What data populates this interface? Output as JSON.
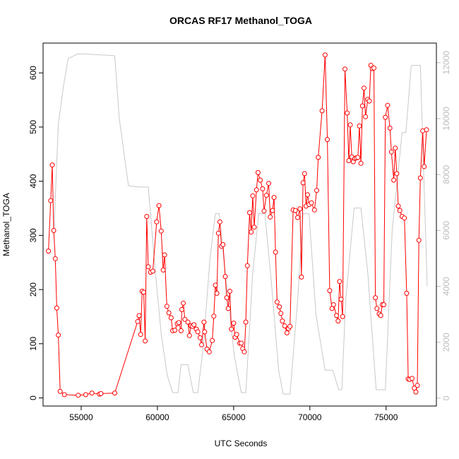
{
  "chart_data": {
    "type": "line",
    "title": "ORCAS RF17 Methanol_TOGA",
    "xlabel": "UTC Seconds",
    "ylabel": "Methanol_TOGA",
    "xlim": [
      52500,
      78300
    ],
    "ylim": [
      -15,
      655
    ],
    "y2lim": [
      -280,
      12700
    ],
    "xticks": [
      55000,
      60000,
      65000,
      70000,
      75000
    ],
    "yticks": [
      0,
      100,
      200,
      300,
      400,
      500,
      600
    ],
    "y2ticks": [
      0,
      2000,
      4000,
      6000,
      8000,
      10000,
      12000
    ],
    "grid": false,
    "series": [
      {
        "role": "primary",
        "color": "#ff0000",
        "points": [
          [
            52850,
            271
          ],
          [
            53000,
            364
          ],
          [
            53100,
            430
          ],
          [
            53200,
            309
          ],
          [
            53300,
            257
          ],
          [
            53400,
            166
          ],
          [
            53500,
            116
          ],
          [
            53620,
            12
          ],
          [
            53900,
            6
          ],
          [
            54800,
            5
          ],
          [
            55300,
            6
          ],
          [
            55700,
            9
          ],
          [
            56200,
            7
          ],
          [
            56300,
            8
          ],
          [
            57200,
            9
          ],
          [
            58700,
            141
          ],
          [
            58800,
            152
          ],
          [
            58900,
            117
          ],
          [
            59000,
            197
          ],
          [
            59100,
            195
          ],
          [
            59200,
            105
          ],
          [
            59300,
            335
          ],
          [
            59400,
            242
          ],
          [
            59550,
            232
          ],
          [
            59700,
            234
          ],
          [
            59950,
            325
          ],
          [
            60100,
            355
          ],
          [
            60250,
            308
          ],
          [
            60380,
            236
          ],
          [
            60470,
            264
          ],
          [
            60620,
            169
          ],
          [
            60750,
            157
          ],
          [
            60900,
            148
          ],
          [
            61000,
            124
          ],
          [
            61150,
            125
          ],
          [
            61300,
            137
          ],
          [
            61400,
            139
          ],
          [
            61550,
            124
          ],
          [
            61600,
            163
          ],
          [
            61700,
            175
          ],
          [
            61800,
            145
          ],
          [
            62000,
            140
          ],
          [
            62100,
            115
          ],
          [
            62200,
            133
          ],
          [
            62300,
            132
          ],
          [
            62400,
            135
          ],
          [
            62550,
            127
          ],
          [
            62650,
            122
          ],
          [
            62800,
            111
          ],
          [
            62900,
            98
          ],
          [
            63050,
            140
          ],
          [
            63100,
            122
          ],
          [
            63250,
            90
          ],
          [
            63400,
            85
          ],
          [
            63600,
            106
          ],
          [
            63700,
            151
          ],
          [
            63800,
            208
          ],
          [
            63900,
            193
          ],
          [
            64000,
            304
          ],
          [
            64100,
            325
          ],
          [
            64200,
            280
          ],
          [
            64300,
            283
          ],
          [
            64450,
            224
          ],
          [
            64550,
            185
          ],
          [
            64650,
            165
          ],
          [
            64750,
            197
          ],
          [
            64850,
            127
          ],
          [
            65000,
            138
          ],
          [
            65100,
            112
          ],
          [
            65200,
            117
          ],
          [
            65400,
            101
          ],
          [
            65500,
            101
          ],
          [
            65600,
            91
          ],
          [
            65700,
            85
          ],
          [
            65800,
            140
          ],
          [
            65900,
            244
          ],
          [
            66050,
            342
          ],
          [
            66150,
            306
          ],
          [
            66250,
            373
          ],
          [
            66350,
            315
          ],
          [
            66500,
            384
          ],
          [
            66600,
            416
          ],
          [
            66750,
            402
          ],
          [
            66900,
            386
          ],
          [
            67000,
            345
          ],
          [
            67150,
            374
          ],
          [
            67300,
            396
          ],
          [
            67400,
            334
          ],
          [
            67550,
            346
          ],
          [
            67650,
            370
          ],
          [
            67750,
            269
          ],
          [
            67850,
            177
          ],
          [
            68000,
            168
          ],
          [
            68100,
            156
          ],
          [
            68200,
            142
          ],
          [
            68350,
            133
          ],
          [
            68500,
            120
          ],
          [
            68600,
            128
          ],
          [
            68700,
            132
          ],
          [
            68900,
            347
          ],
          [
            69050,
            346
          ],
          [
            69200,
            333
          ],
          [
            69350,
            349
          ],
          [
            69450,
            223
          ],
          [
            69550,
            397
          ],
          [
            69650,
            414
          ],
          [
            69750,
            354
          ],
          [
            69850,
            375
          ],
          [
            69950,
            357
          ],
          [
            70100,
            360
          ],
          [
            70300,
            347
          ],
          [
            70450,
            383
          ],
          [
            70550,
            444
          ],
          [
            70800,
            530
          ],
          [
            71000,
            633
          ],
          [
            71150,
            477
          ],
          [
            71300,
            198
          ],
          [
            71450,
            165
          ],
          [
            71550,
            172
          ],
          [
            71750,
            152
          ],
          [
            71850,
            142
          ],
          [
            71950,
            215
          ],
          [
            72050,
            182
          ],
          [
            72150,
            150
          ],
          [
            72300,
            607
          ],
          [
            72450,
            526
          ],
          [
            72550,
            438
          ],
          [
            72650,
            504
          ],
          [
            72750,
            445
          ],
          [
            72850,
            436
          ],
          [
            72950,
            442
          ],
          [
            73050,
            443
          ],
          [
            73150,
            444
          ],
          [
            73250,
            502
          ],
          [
            73350,
            433
          ],
          [
            73450,
            539
          ],
          [
            73550,
            572
          ],
          [
            73650,
            519
          ],
          [
            73800,
            551
          ],
          [
            73900,
            548
          ],
          [
            74000,
            614
          ],
          [
            74100,
            608
          ],
          [
            74200,
            609
          ],
          [
            74300,
            185
          ],
          [
            74400,
            165
          ],
          [
            74550,
            155
          ],
          [
            74650,
            152
          ],
          [
            74750,
            172
          ],
          [
            74850,
            172
          ],
          [
            74950,
            518
          ],
          [
            75100,
            540
          ],
          [
            75250,
            498
          ],
          [
            75350,
            454
          ],
          [
            75500,
            402
          ],
          [
            75600,
            461
          ],
          [
            75700,
            414
          ],
          [
            75800,
            354
          ],
          [
            75900,
            346
          ],
          [
            76050,
            335
          ],
          [
            76200,
            332
          ],
          [
            76350,
            193
          ],
          [
            76450,
            35
          ],
          [
            76550,
            34
          ],
          [
            76700,
            36
          ],
          [
            76850,
            18
          ],
          [
            76950,
            11
          ],
          [
            77050,
            23
          ],
          [
            77150,
            291
          ],
          [
            77250,
            406
          ],
          [
            77400,
            493
          ],
          [
            77500,
            427
          ],
          [
            77650,
            495
          ]
        ]
      },
      {
        "role": "secondary",
        "color": "#c8c8c8",
        "points": [
          [
            53200,
            5800
          ],
          [
            53500,
            9800
          ],
          [
            53850,
            11200
          ],
          [
            54150,
            12150
          ],
          [
            54800,
            12320
          ],
          [
            57200,
            12250
          ],
          [
            57500,
            10000
          ],
          [
            58100,
            7600
          ],
          [
            58800,
            7550
          ],
          [
            59400,
            7550
          ],
          [
            59850,
            4600
          ],
          [
            60250,
            2300
          ],
          [
            60650,
            800
          ],
          [
            61000,
            200
          ],
          [
            61350,
            200
          ],
          [
            61550,
            1200
          ],
          [
            62000,
            1200
          ],
          [
            62350,
            200
          ],
          [
            62650,
            200
          ],
          [
            63000,
            1800
          ],
          [
            63450,
            5000
          ],
          [
            63800,
            6600
          ],
          [
            64050,
            6600
          ],
          [
            64500,
            4200
          ],
          [
            65050,
            1500
          ],
          [
            65500,
            200
          ],
          [
            65800,
            200
          ],
          [
            66250,
            4500
          ],
          [
            66650,
            6600
          ],
          [
            67050,
            6600
          ],
          [
            67500,
            4000
          ],
          [
            67950,
            1000
          ],
          [
            68250,
            150
          ],
          [
            68700,
            150
          ],
          [
            69200,
            3500
          ],
          [
            69550,
            6600
          ],
          [
            69950,
            6600
          ],
          [
            70400,
            3000
          ],
          [
            71000,
            1000
          ],
          [
            71500,
            1000
          ],
          [
            71900,
            300
          ],
          [
            72100,
            300
          ],
          [
            72350,
            3500
          ],
          [
            72900,
            6800
          ],
          [
            73350,
            6800
          ],
          [
            73800,
            4500
          ],
          [
            74350,
            300
          ],
          [
            74950,
            300
          ],
          [
            75400,
            6000
          ],
          [
            76050,
            9500
          ],
          [
            76300,
            9500
          ],
          [
            76650,
            11900
          ],
          [
            77250,
            11900
          ],
          [
            77700,
            4000
          ]
        ]
      }
    ]
  }
}
